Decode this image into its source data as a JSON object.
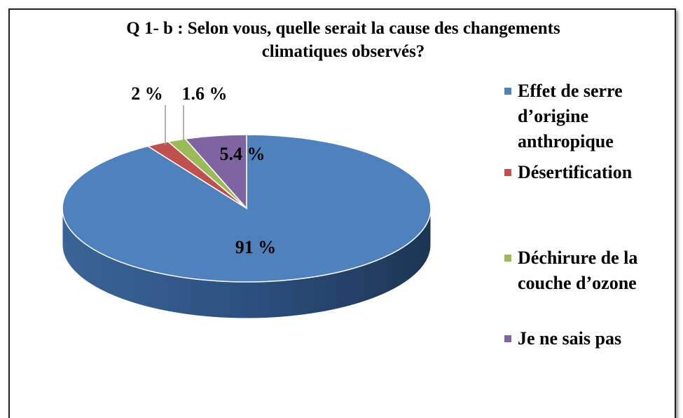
{
  "chart_data": {
    "type": "pie3d",
    "title": "Q 1- b : Selon vous, quelle serait la cause des changements climatiques observés?",
    "categories": [
      "Effet de serre d’origine anthropique",
      "Désertification",
      "Déchirure de la couche d’ozone",
      "Je ne sais pas"
    ],
    "values": [
      91,
      2,
      1.6,
      5.4
    ],
    "value_labels": [
      "91 %",
      "2 %",
      "1.6 %",
      "5.4 %"
    ],
    "colors": [
      "#4f81bd",
      "#c0504d",
      "#9bbb59",
      "#8064a2"
    ],
    "legend": "right"
  }
}
